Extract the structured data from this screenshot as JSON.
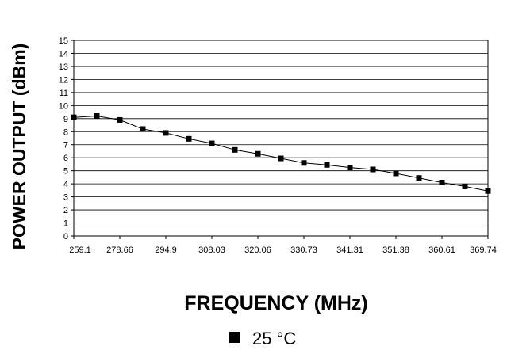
{
  "chart_data": {
    "type": "line",
    "title": "",
    "xlabel": "FREQUENCY (MHz)",
    "ylabel": "POWER OUTPUT (dBm)",
    "ylim": [
      0,
      15
    ],
    "yticks": [
      "0",
      "1",
      "2",
      "3",
      "4",
      "5",
      "6",
      "7",
      "8",
      "9",
      "10",
      "11",
      "12",
      "13",
      "14",
      "15"
    ],
    "xtick_labels": [
      "259.1",
      "278.66",
      "294.9",
      "308.03",
      "320.06",
      "330.73",
      "341.31",
      "351.38",
      "360.61",
      "369.74"
    ],
    "grid": true,
    "legend_position": "bottom-center",
    "series": [
      {
        "name": "25 °C",
        "color": "#000000",
        "marker": "square",
        "values": [
          9.1,
          9.2,
          8.9,
          8.2,
          7.9,
          7.45,
          7.1,
          6.6,
          6.3,
          5.95,
          5.6,
          5.45,
          5.25,
          5.1,
          4.8,
          4.45,
          4.1,
          3.8,
          3.45
        ]
      }
    ]
  }
}
